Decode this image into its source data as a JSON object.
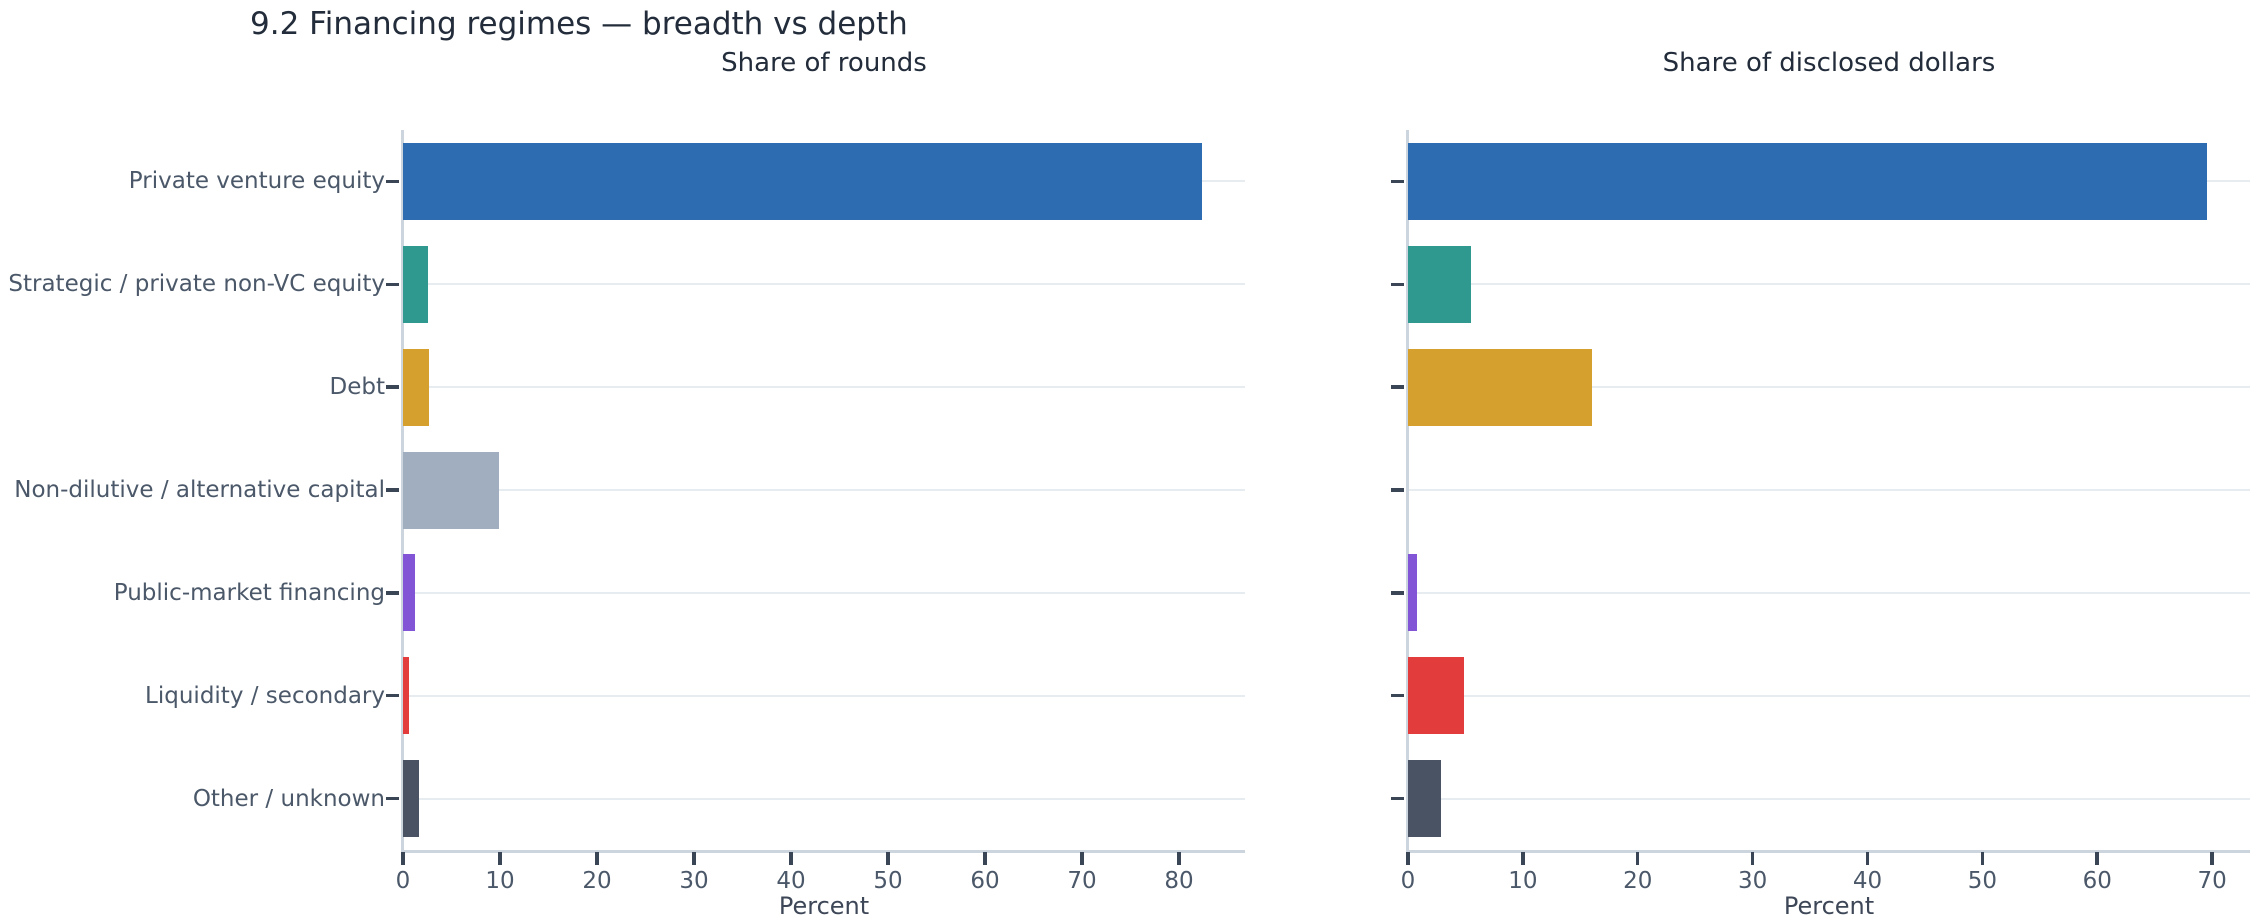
{
  "figure": {
    "title": "9.2 Financing regimes — breadth vs depth"
  },
  "palette": {
    "bar_colors": [
      "#2e6cb2",
      "#2f998f",
      "#d6a02f",
      "#a0aec0",
      "#8155d6",
      "#e23c3c",
      "#4a5363"
    ],
    "gridline": "#e7ecf1",
    "spine": "#ccd4dd",
    "tick_mark": "#3a4656",
    "tick_label": "#4b5869",
    "title_text": "#222c3a"
  },
  "chart_data": [
    {
      "type": "bar",
      "orientation": "horizontal",
      "title": "Share of rounds",
      "xlabel": "Percent",
      "ylabel": "",
      "categories": [
        "Private venture equity",
        "Strategic / private non-VC equity",
        "Debt",
        "Non-dilutive / alternative capital",
        "Public-market financing",
        "Liquidity / secondary",
        "Other / unknown"
      ],
      "values": [
        82.4,
        2.6,
        2.7,
        9.9,
        1.2,
        0.6,
        1.7
      ],
      "xlim": [
        0,
        86.8
      ],
      "xticks": [
        0,
        10,
        20,
        30,
        40,
        50,
        60,
        70,
        80
      ],
      "grid": "horizontal",
      "legend": false,
      "show_category_labels": true
    },
    {
      "type": "bar",
      "orientation": "horizontal",
      "title": "Share of disclosed dollars",
      "xlabel": "Percent",
      "ylabel": "",
      "categories": [
        "Private venture equity",
        "Strategic / private non-VC equity",
        "Debt",
        "Non-dilutive / alternative capital",
        "Public-market financing",
        "Liquidity / secondary",
        "Other / unknown"
      ],
      "values": [
        69.6,
        5.5,
        16.0,
        0.0,
        0.8,
        4.9,
        2.9
      ],
      "xlim": [
        0,
        73.3
      ],
      "xticks": [
        0,
        10,
        20,
        30,
        40,
        50,
        60,
        70
      ],
      "grid": "horizontal",
      "legend": false,
      "show_category_labels": false
    }
  ]
}
